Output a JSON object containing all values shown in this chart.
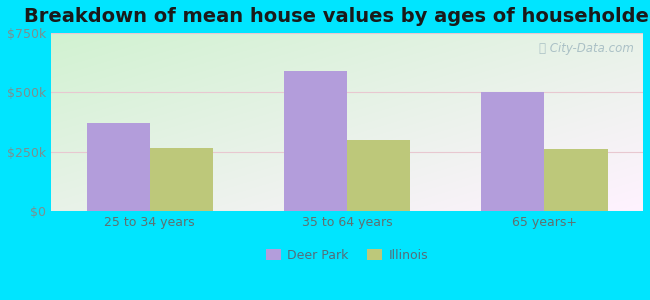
{
  "title": "Breakdown of mean house values by ages of householders",
  "categories": [
    "25 to 34 years",
    "35 to 64 years",
    "65 years+"
  ],
  "deer_park_values": [
    370000,
    590000,
    500000
  ],
  "illinois_values": [
    265000,
    300000,
    260000
  ],
  "ylim": [
    0,
    750000
  ],
  "yticks": [
    0,
    250000,
    500000,
    750000
  ],
  "ytick_labels": [
    "$0",
    "$250k",
    "$500k",
    "$750k"
  ],
  "bar_width": 0.32,
  "deer_park_color": "#b39ddb",
  "illinois_color": "#bdc87a",
  "legend_deer_park": "Deer Park",
  "legend_illinois": "Illinois",
  "bg_outer": "#00e5ff",
  "title_fontsize": 14,
  "axis_label_fontsize": 9,
  "tick_label_fontsize": 9,
  "watermark": "City-Data.com",
  "grid_color": "#e8c8d0",
  "tick_color": "#7a9090",
  "xtick_color": "#607070"
}
